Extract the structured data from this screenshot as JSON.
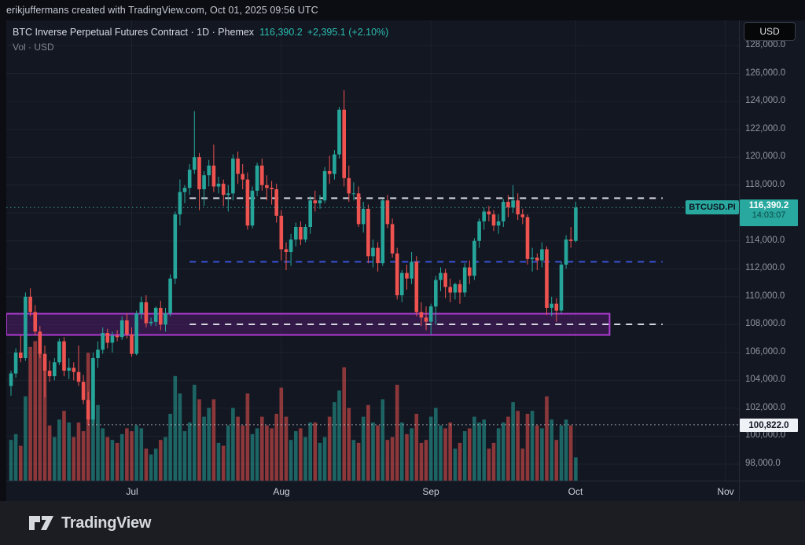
{
  "attribution": {
    "text": "erikjuffermans created with TradingView.com, Oct 01, 2025 09:56 UTC"
  },
  "legend": {
    "title": "BTC Inverse Perpetual Futures Contract · 1D · Phemex",
    "price": "116,390.2",
    "change": "+2,395.1 (+2.10%)",
    "vol_label": "Vol · USD"
  },
  "price_axis": {
    "currency": "USD",
    "ticks": [
      128000,
      126000,
      124000,
      122000,
      120000,
      118000,
      114000,
      112000,
      110000,
      108000,
      106000,
      104000,
      102000,
      100000,
      98000
    ]
  },
  "time_axis": {
    "months": [
      "Jul",
      "Aug",
      "Sep",
      "Oct",
      "Nov"
    ],
    "month_day_index": [
      25,
      56,
      87,
      117,
      148
    ]
  },
  "badges": {
    "symbol": "BTCUSD.PI",
    "price": "116,390.2",
    "countdown": "14:03:07",
    "session_low": "100,822.0"
  },
  "logo": {
    "text": "TradingView"
  },
  "colors": {
    "up": "#26a69a",
    "down": "#ef5350",
    "badge_teal": "#28a89e",
    "header_teal": "#2bbdb0",
    "grid": "#1e222d",
    "white_line": "#d3d6de",
    "blue_line": "#3a53d6",
    "current_line": "#3fa99e",
    "low_line": "#c9cdd6",
    "zone_border": "#ad3cd0",
    "zone_fill": "rgba(123,31,162,0.30)"
  },
  "chart_data": {
    "type": "candlestick",
    "title": "BTC Inverse Perpetual Futures Contract",
    "exchange": "Phemex",
    "interval": "1D",
    "currency": "USD",
    "last_price": 116390.2,
    "change": 2395.1,
    "change_pct": 2.1,
    "marked_low": 100822.0,
    "start_date": "2025-06-06",
    "end_date": "2025-10-01",
    "ylim": [
      97000,
      128500
    ],
    "legend_position": "top-left",
    "grid": true,
    "candles": [
      [
        103600,
        104700,
        102900,
        104500
      ],
      [
        104500,
        106300,
        104200,
        106000
      ],
      [
        106000,
        107200,
        105300,
        105600
      ],
      [
        105600,
        110300,
        105400,
        110000
      ],
      [
        110000,
        110600,
        108600,
        108900
      ],
      [
        108900,
        109400,
        107200,
        107500
      ],
      [
        107500,
        107900,
        105600,
        105900
      ],
      [
        105900,
        106500,
        102800,
        104700
      ],
      [
        104700,
        105400,
        103900,
        104300
      ],
      [
        104300,
        105600,
        104000,
        105300
      ],
      [
        105300,
        107000,
        105100,
        106800
      ],
      [
        106800,
        107100,
        104300,
        104700
      ],
      [
        104700,
        105600,
        104100,
        104900
      ],
      [
        104900,
        105300,
        104000,
        104600
      ],
      [
        104600,
        106500,
        103600,
        103900
      ],
      [
        103900,
        104400,
        102300,
        102600
      ],
      [
        102600,
        103200,
        100822,
        101200
      ],
      [
        101200,
        106000,
        100900,
        105600
      ],
      [
        105600,
        106800,
        104900,
        106200
      ],
      [
        106200,
        107800,
        105900,
        107400
      ],
      [
        107400,
        107700,
        106300,
        106700
      ],
      [
        106700,
        107500,
        106000,
        107200
      ],
      [
        107200,
        107600,
        106800,
        107100
      ],
      [
        107100,
        108600,
        106900,
        108300
      ],
      [
        108300,
        108800,
        107000,
        107300
      ],
      [
        107300,
        107800,
        105700,
        105900
      ],
      [
        105900,
        109000,
        105800,
        108800
      ],
      [
        108800,
        110000,
        108400,
        109600
      ],
      [
        109600,
        110100,
        107800,
        108100
      ],
      [
        108100,
        108500,
        107900,
        108200
      ],
      [
        108200,
        109300,
        107900,
        109200
      ],
      [
        109200,
        109700,
        107600,
        108000
      ],
      [
        108000,
        109200,
        107500,
        108800
      ],
      [
        108800,
        111600,
        108600,
        111300
      ],
      [
        111300,
        116100,
        110900,
        115900
      ],
      [
        115900,
        118400,
        115100,
        117500
      ],
      [
        117500,
        118000,
        116700,
        117800
      ],
      [
        117800,
        119500,
        117300,
        119100
      ],
      [
        119100,
        123300,
        118800,
        120000
      ],
      [
        120000,
        120300,
        116200,
        117700
      ],
      [
        117700,
        119000,
        116500,
        118700
      ],
      [
        118700,
        119800,
        117900,
        119400
      ],
      [
        119400,
        120900,
        117500,
        117900
      ],
      [
        117900,
        118600,
        117400,
        118100
      ],
      [
        118100,
        118400,
        116500,
        117300
      ],
      [
        117300,
        118000,
        116100,
        117400
      ],
      [
        117400,
        120200,
        116900,
        119900
      ],
      [
        119900,
        120400,
        118100,
        118800
      ],
      [
        118800,
        119500,
        117700,
        118400
      ],
      [
        118400,
        118900,
        114800,
        115100
      ],
      [
        115100,
        117900,
        114900,
        117600
      ],
      [
        117600,
        119600,
        117200,
        119400
      ],
      [
        119400,
        119900,
        117600,
        118000
      ],
      [
        118000,
        118700,
        116900,
        117800
      ],
      [
        117800,
        118300,
        116600,
        117700
      ],
      [
        117700,
        118100,
        115300,
        115800
      ],
      [
        115800,
        116200,
        112600,
        113400
      ],
      [
        113400,
        113900,
        111900,
        113200
      ],
      [
        113200,
        114500,
        112200,
        114100
      ],
      [
        114100,
        115300,
        113600,
        115000
      ],
      [
        115000,
        115400,
        113700,
        114100
      ],
      [
        114100,
        115200,
        113900,
        115000
      ],
      [
        115000,
        117200,
        114500,
        116900
      ],
      [
        116900,
        117600,
        116100,
        116700
      ],
      [
        116700,
        117300,
        116300,
        116900
      ],
      [
        116900,
        119300,
        116700,
        119000
      ],
      [
        119000,
        120100,
        118100,
        118800
      ],
      [
        118800,
        120500,
        118400,
        120200
      ],
      [
        120200,
        123600,
        119900,
        123400
      ],
      [
        123400,
        124800,
        117900,
        118500
      ],
      [
        118500,
        119400,
        116800,
        117400
      ],
      [
        117400,
        118200,
        116900,
        117400
      ],
      [
        117400,
        117900,
        115000,
        115200
      ],
      [
        115200,
        116800,
        114600,
        116300
      ],
      [
        116300,
        116600,
        112400,
        112900
      ],
      [
        112900,
        114100,
        112100,
        113500
      ],
      [
        113500,
        113900,
        111800,
        112400
      ],
      [
        112400,
        117000,
        112200,
        116900
      ],
      [
        116900,
        117300,
        114900,
        115200
      ],
      [
        115200,
        115600,
        112800,
        113100
      ],
      [
        113100,
        113500,
        109800,
        110100
      ],
      [
        110100,
        111900,
        109600,
        111700
      ],
      [
        111700,
        112300,
        110500,
        111300
      ],
      [
        111300,
        113200,
        110900,
        112500
      ],
      [
        112500,
        112900,
        108600,
        108900
      ],
      [
        108900,
        109600,
        107900,
        108500
      ],
      [
        108500,
        109300,
        107600,
        108200
      ],
      [
        108200,
        109500,
        107300,
        109300
      ],
      [
        109300,
        111500,
        108000,
        111200
      ],
      [
        111200,
        112100,
        110400,
        111700
      ],
      [
        111700,
        112000,
        109900,
        110700
      ],
      [
        110700,
        111300,
        109600,
        110300
      ],
      [
        110300,
        111000,
        109800,
        110900
      ],
      [
        110900,
        111200,
        109500,
        110300
      ],
      [
        110300,
        112400,
        110000,
        112100
      ],
      [
        112100,
        112600,
        110900,
        111500
      ],
      [
        111500,
        114200,
        111200,
        114000
      ],
      [
        114000,
        115600,
        113500,
        115400
      ],
      [
        115400,
        116400,
        114800,
        116100
      ],
      [
        116100,
        116500,
        115400,
        115900
      ],
      [
        115900,
        116200,
        114700,
        115100
      ],
      [
        115100,
        115900,
        114500,
        115400
      ],
      [
        115400,
        117000,
        115000,
        116800
      ],
      [
        116800,
        117300,
        115700,
        116400
      ],
      [
        116400,
        118000,
        116000,
        116900
      ],
      [
        116900,
        117400,
        115500,
        115900
      ],
      [
        115900,
        116300,
        115200,
        115700
      ],
      [
        115700,
        115900,
        112300,
        112700
      ],
      [
        112700,
        113500,
        111800,
        112800
      ],
      [
        112800,
        113100,
        111900,
        112600
      ],
      [
        112600,
        113900,
        112100,
        113400
      ],
      [
        113400,
        113600,
        108700,
        109200
      ],
      [
        109200,
        110000,
        108600,
        109500
      ],
      [
        109500,
        109900,
        108200,
        109000
      ],
      [
        109000,
        112500,
        108800,
        112300
      ],
      [
        112300,
        114400,
        112000,
        114100
      ],
      [
        114100,
        115000,
        113500,
        114000
      ],
      [
        114000,
        116800,
        113900,
        116390.2
      ]
    ],
    "volume_rel": [
      28,
      32,
      24,
      58,
      92,
      96,
      88,
      84,
      38,
      30,
      42,
      48,
      40,
      30,
      40,
      34,
      88,
      82,
      52,
      36,
      30,
      28,
      26,
      32,
      36,
      34,
      38,
      36,
      22,
      18,
      22,
      28,
      30,
      46,
      72,
      60,
      34,
      40,
      66,
      56,
      44,
      50,
      56,
      26,
      24,
      38,
      50,
      44,
      38,
      60,
      32,
      36,
      44,
      38,
      36,
      46,
      64,
      44,
      28,
      34,
      36,
      30,
      40,
      40,
      26,
      30,
      44,
      54,
      62,
      78,
      50,
      28,
      26,
      44,
      52,
      40,
      38,
      56,
      28,
      30,
      66,
      40,
      32,
      36,
      46,
      26,
      28,
      44,
      50,
      38,
      36,
      40,
      22,
      26,
      34,
      36,
      44,
      40,
      42,
      22,
      26,
      36,
      40,
      44,
      54,
      48,
      22,
      46,
      48,
      38,
      36,
      58,
      42,
      28,
      38,
      42,
      38,
      16
    ],
    "levels": [
      {
        "price": 117060,
        "style": "dashed",
        "color_key": "white_line",
        "from_day": 37,
        "to_day": 135
      },
      {
        "price": 112500,
        "style": "dashed",
        "color_key": "blue_line",
        "from_day": 37,
        "to_day": 135
      },
      {
        "price": 108020,
        "style": "dashed",
        "color_key": "white_line",
        "from_day": 37,
        "to_day": 135
      },
      {
        "price": 116390.2,
        "style": "dotted",
        "color_key": "current_line",
        "from_day": -1,
        "to_day": 999,
        "note": "current price line"
      },
      {
        "price": 100822,
        "style": "dotted",
        "color_key": "low_line",
        "from_day": 16,
        "to_day": 999,
        "note": "marked session low"
      }
    ],
    "zone": {
      "top": 108780,
      "bottom": 107260,
      "from_day": -1,
      "to_day": 124,
      "note": "purple support zone"
    }
  }
}
